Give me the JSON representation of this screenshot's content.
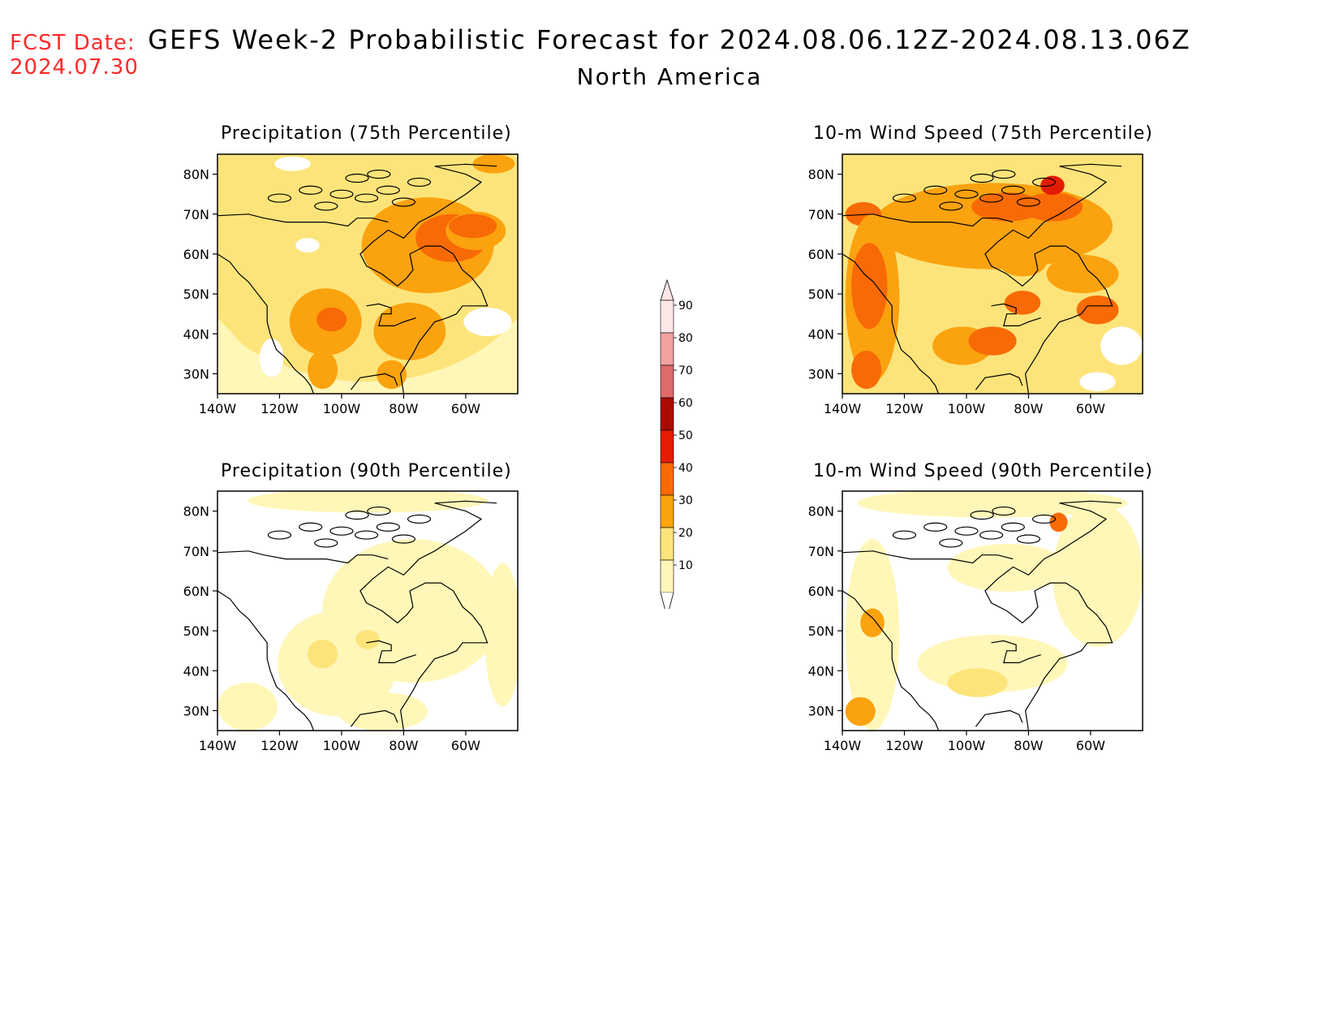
{
  "header": {
    "fcst_label": "FCST Date:",
    "fcst_date": "2024.07.30",
    "title": "GEFS Week-2 Probabilistic Forecast for 2024.08.06.12Z-2024.08.13.06Z",
    "subtitle": "North America"
  },
  "colors": {
    "fcst": "#ff2a2a",
    "levels": [
      "#fff7b8",
      "#fde47a",
      "#fba20f",
      "#f86a06",
      "#e31c04",
      "#a80b02",
      "#de6a6a",
      "#f2a0a0",
      "#fde6e6"
    ]
  },
  "colorbar": {
    "labels": [
      "10",
      "20",
      "30",
      "40",
      "50",
      "60",
      "70",
      "80",
      "90"
    ]
  },
  "axes": {
    "lat_labels": [
      "80N",
      "70N",
      "60N",
      "50N",
      "40N",
      "30N"
    ],
    "lon_labels": [
      "140W",
      "120W",
      "100W",
      "80W",
      "60W"
    ]
  },
  "panels": [
    {
      "title": "Precipitation (75th Percentile)",
      "field": "precip75"
    },
    {
      "title": "10-m Wind Speed (75th Percentile)",
      "field": "wind75"
    },
    {
      "title": "Precipitation (90th Percentile)",
      "field": "precip90"
    },
    {
      "title": "10-m Wind Speed (90th Percentile)",
      "field": "wind90"
    }
  ]
}
